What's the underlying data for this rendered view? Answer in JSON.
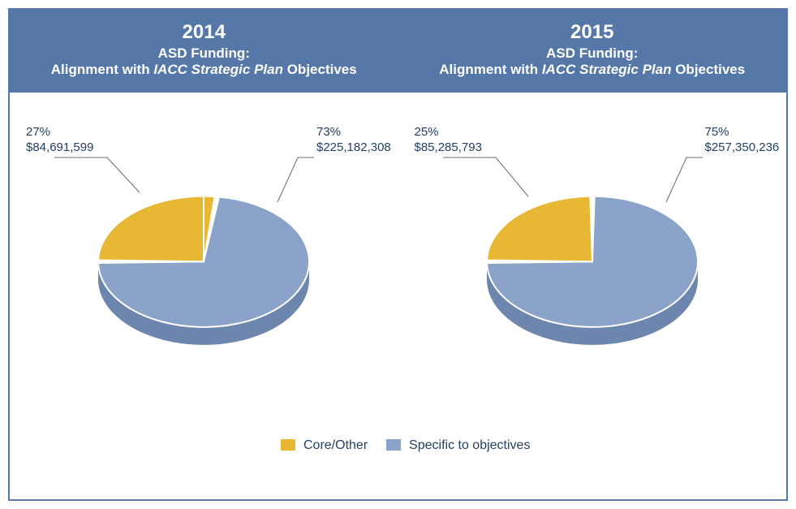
{
  "colors": {
    "frame_border": "#5578a9",
    "header_bg": "#5578a9",
    "header_text": "#ffffff",
    "label_text": "#254061",
    "leader_line": "#6b6b6b",
    "slice_core": "#e8b835",
    "slice_core_side": "#c59a28",
    "slice_spec": "#8ba3c9",
    "slice_spec_side": "#6d86ad",
    "slice_gap": "#ffffff"
  },
  "header": {
    "left": {
      "year": "2014",
      "line1": "ASD Funding:",
      "line2_pre": "Alignment with ",
      "line2_italic": "IACC Strategic Plan",
      "line2_post": " Objectives"
    },
    "right": {
      "year": "2015",
      "line1": "ASD Funding:",
      "line2_pre": "Alignment with ",
      "line2_italic": "IACC Strategic Plan",
      "line2_post": " Objectives"
    }
  },
  "charts": {
    "pie_radius": 130,
    "depth": 22,
    "tilt_scale_y": 0.62,
    "left": {
      "type": "pie-3d",
      "slices": [
        {
          "key": "core",
          "fraction": 0.27,
          "percent_label": "27%",
          "amount_label": "$84,691,599"
        },
        {
          "key": "spec",
          "fraction": 0.73,
          "percent_label": "73%",
          "amount_label": "$225,182,308"
        }
      ]
    },
    "right": {
      "type": "pie-3d",
      "slices": [
        {
          "key": "core",
          "fraction": 0.25,
          "percent_label": "25%",
          "amount_label": "$85,285,793"
        },
        {
          "key": "spec",
          "fraction": 0.75,
          "percent_label": "75%",
          "amount_label": "$257,350,236"
        }
      ]
    }
  },
  "legend": {
    "items": [
      {
        "swatch_key": "core",
        "label": "Core/Other"
      },
      {
        "swatch_key": "spec",
        "label": "Specific to objectives"
      }
    ]
  }
}
